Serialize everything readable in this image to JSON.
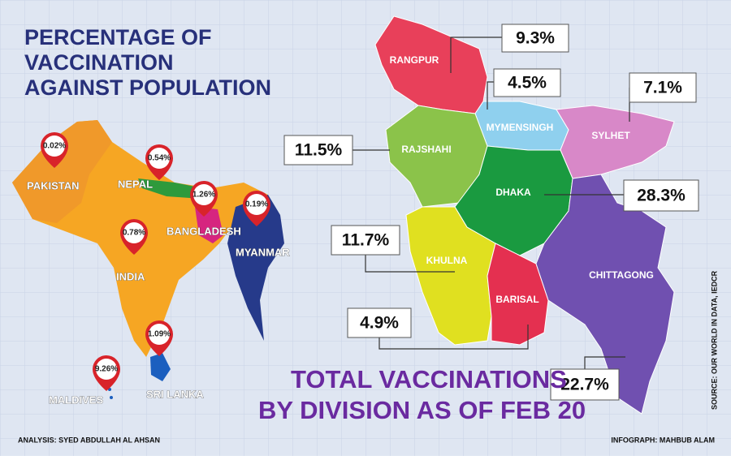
{
  "title_lines": [
    "PERCENTAGE OF",
    "VACCINATION",
    "AGAINST POPULATION"
  ],
  "countries": [
    {
      "name": "PAKISTAN",
      "value": "0.02%"
    },
    {
      "name": "NEPAL",
      "value": "0.54%"
    },
    {
      "name": "BANGLADESH",
      "value": "1.26%"
    },
    {
      "name": "MYANMAR",
      "value": "0.19%"
    },
    {
      "name": "INDIA",
      "value": "0.78%"
    },
    {
      "name": "SRI LANKA",
      "value": "1.09%"
    },
    {
      "name": "MALDIVES",
      "value": "9.26%"
    }
  ],
  "divisions": [
    {
      "name": "RANGPUR",
      "value": "9.3%"
    },
    {
      "name": "MYMENSINGH",
      "value": "4.5%"
    },
    {
      "name": "SYLHET",
      "value": "7.1%"
    },
    {
      "name": "RAJSHAHI",
      "value": "11.5%"
    },
    {
      "name": "DHAKA",
      "value": "28.3%"
    },
    {
      "name": "KHULNA",
      "value": "11.7%"
    },
    {
      "name": "BARISAL",
      "value": "4.9%"
    },
    {
      "name": "CHITTAGONG",
      "value": "22.7%"
    }
  ],
  "subtitle_lines": [
    "TOTAL VACCINATIONS",
    "BY DIVISION AS OF FEB 20"
  ],
  "credits": {
    "analysis": "ANALYSIS: SYED ABDULLAH AL AHSAN",
    "infograph": "INFOGRAPH: MAHBUB ALAM",
    "source": "SOURCE: OUR WORLD IN DATA, IEDCR"
  }
}
